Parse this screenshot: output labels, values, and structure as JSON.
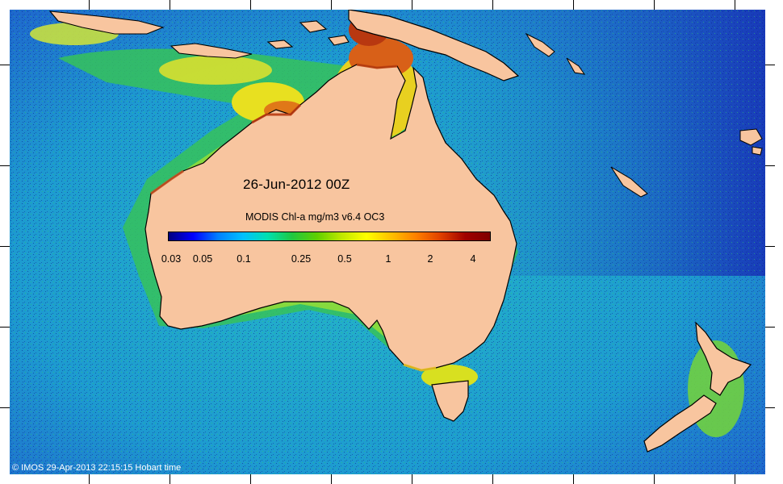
{
  "date_label": "26-Jun-2012 00Z",
  "colorbar": {
    "title": "MODIS Chl-a mg/m3 v6.4 OC3",
    "ticks": [
      "0.03",
      "0.05",
      "0.1",
      "0.25",
      "0.5",
      "1",
      "2",
      "4"
    ],
    "colors": [
      "#00007f",
      "#0000ff",
      "#0080ff",
      "#00c0ff",
      "#00e0b0",
      "#20c840",
      "#60d000",
      "#c0e800",
      "#ffff00",
      "#ffc000",
      "#ff8000",
      "#e04000",
      "#a00000",
      "#7f0000"
    ]
  },
  "credit": "© IMOS 29-Apr-2013 22:15:15 Hobart time",
  "colors": {
    "land": "#f8c59f",
    "ocean_deep": "#1e4fd0",
    "ocean_mid": "#19a6c8",
    "coast_green": "#3cc84a",
    "coast_yellow": "#e8e020",
    "coast_red": "#c84010"
  }
}
